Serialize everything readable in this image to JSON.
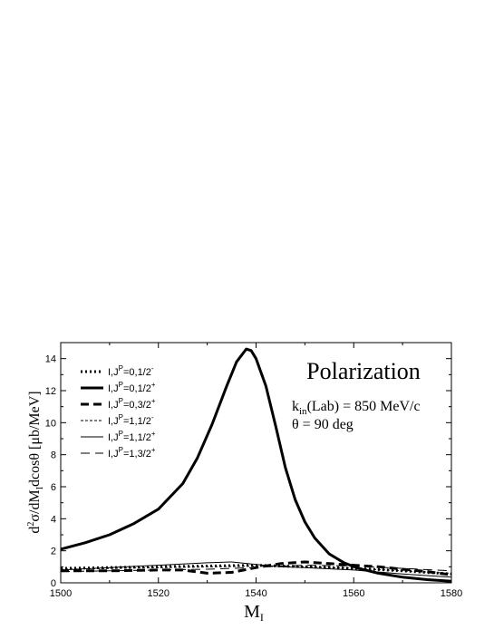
{
  "chart_data": {
    "type": "line",
    "title": "Polarization",
    "annotations": {
      "kin_prefix": "k",
      "kin_sub": "in",
      "kin_rest": "(Lab) = 850 MeV/c",
      "theta": "θ = 90 deg"
    },
    "xlabel": {
      "main": "M",
      "sub": "I"
    },
    "ylabel": {
      "p1": "d",
      "sup1": "2",
      "p2": "σ/dM",
      "sub1": "I",
      "p3": "dcosθ [μb/MeV]"
    },
    "xlim": [
      1500,
      1580
    ],
    "ylim": [
      0,
      15
    ],
    "xticks": [
      "1500",
      "1520",
      "1540",
      "1560",
      "1580"
    ],
    "yticks": [
      "0",
      "2",
      "4",
      "6",
      "8",
      "10",
      "12",
      "14"
    ],
    "grid": false,
    "legend_position": "top-left",
    "series": [
      {
        "name": "I,J=0,1/2-",
        "label_main": "I,J",
        "label_sup": "P",
        "label_rest": "=0,1/2",
        "label_rest_sup": "-",
        "style": "dotted-thick",
        "x": [
          1500,
          1510,
          1520,
          1530,
          1540,
          1545,
          1550,
          1560,
          1570,
          1580
        ],
        "y": [
          0.9,
          0.95,
          1.0,
          1.05,
          1.1,
          1.05,
          1.0,
          0.9,
          0.75,
          0.55
        ]
      },
      {
        "name": "I,J=0,1/2+",
        "label_main": "I,J",
        "label_sup": "P",
        "label_rest": "=0,1/2",
        "label_rest_sup": "+",
        "style": "solid-thick",
        "x": [
          1500,
          1505,
          1510,
          1515,
          1520,
          1525,
          1528,
          1531,
          1534,
          1536,
          1538,
          1539,
          1540,
          1542,
          1544,
          1546,
          1548,
          1550,
          1552,
          1555,
          1558,
          1561,
          1565,
          1570,
          1575,
          1580
        ],
        "y": [
          2.1,
          2.5,
          3.0,
          3.7,
          4.6,
          6.2,
          7.8,
          9.9,
          12.3,
          13.8,
          14.6,
          14.5,
          14.0,
          12.3,
          9.8,
          7.2,
          5.2,
          3.8,
          2.8,
          1.8,
          1.25,
          0.9,
          0.6,
          0.35,
          0.2,
          0.1
        ]
      },
      {
        "name": "I,J=0,3/2+",
        "label_main": "I,J",
        "label_sup": "P",
        "label_rest": "=0,3/2",
        "label_rest_sup": "+",
        "style": "dashed-thick",
        "x": [
          1500,
          1510,
          1520,
          1525,
          1530,
          1535,
          1540,
          1545,
          1550,
          1555,
          1560,
          1565,
          1570,
          1575,
          1580
        ],
        "y": [
          0.75,
          0.75,
          0.8,
          0.8,
          0.6,
          0.65,
          0.95,
          1.2,
          1.3,
          1.2,
          1.1,
          1.0,
          0.85,
          0.7,
          0.5
        ]
      },
      {
        "name": "I,J=1,1/2-",
        "label_main": "I,J",
        "label_sup": "P",
        "label_rest": "=1,1/2",
        "label_rest_sup": "-",
        "style": "dotted-thin",
        "x": [
          1500,
          1510,
          1520,
          1530,
          1540,
          1550,
          1560,
          1570,
          1580
        ],
        "y": [
          0.85,
          0.9,
          0.95,
          1.0,
          1.05,
          1.0,
          0.9,
          0.75,
          0.6
        ]
      },
      {
        "name": "I,J=1,1/2+",
        "label_main": "I,J",
        "label_sup": "P",
        "label_rest": "=1,1/2",
        "label_rest_sup": "+",
        "style": "solid-thin",
        "x": [
          1500,
          1510,
          1520,
          1530,
          1535,
          1540,
          1545,
          1550,
          1560,
          1570,
          1580
        ],
        "y": [
          0.8,
          0.95,
          1.1,
          1.25,
          1.3,
          1.15,
          1.0,
          0.95,
          0.8,
          0.55,
          0.35
        ]
      },
      {
        "name": "I,J=1,3/2+",
        "label_main": "I,J",
        "label_sup": "P",
        "label_rest": "=1,3/2",
        "label_rest_sup": "+",
        "style": "dashed-thin",
        "x": [
          1500,
          1510,
          1520,
          1530,
          1540,
          1545,
          1550,
          1560,
          1570,
          1580
        ],
        "y": [
          0.7,
          0.75,
          0.8,
          0.85,
          0.95,
          1.05,
          1.1,
          1.05,
          0.9,
          0.75
        ]
      }
    ]
  }
}
